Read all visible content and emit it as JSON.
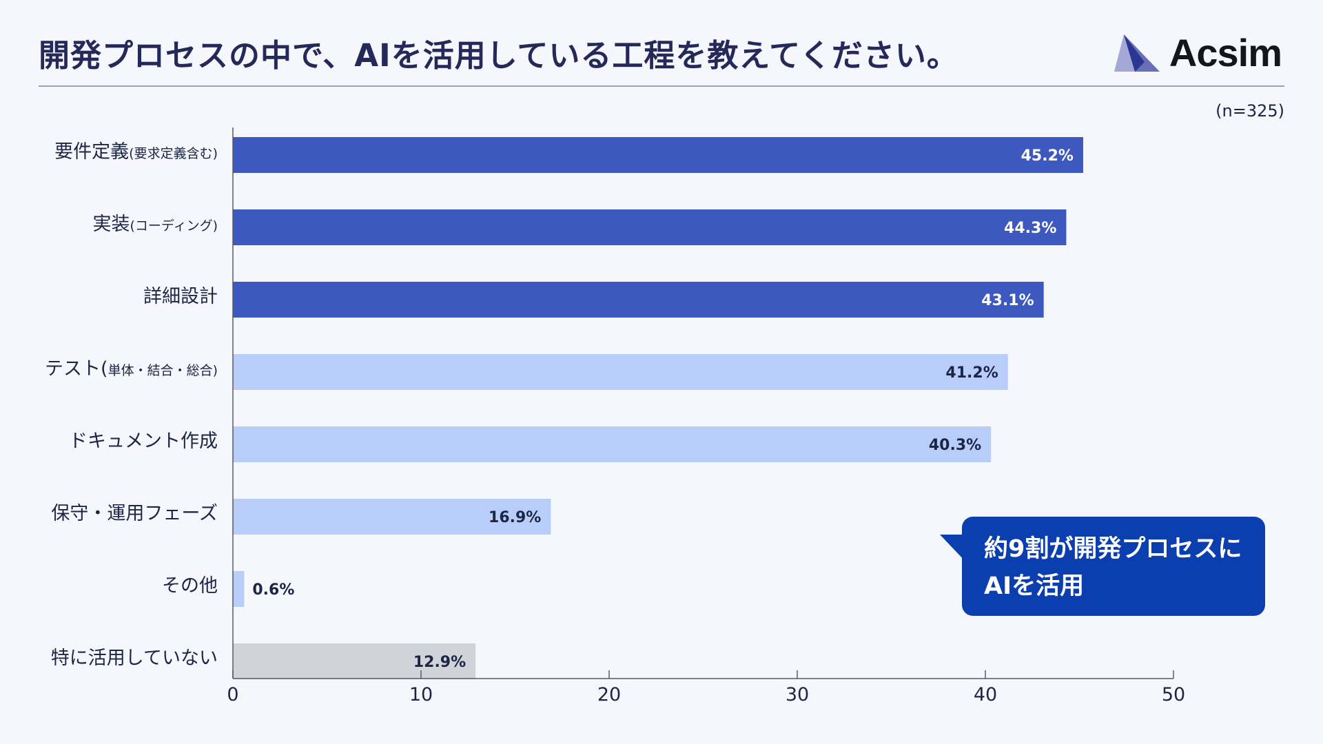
{
  "header": {
    "title": "開発プロセスの中で、AIを活用している工程を教えてください。",
    "logo_text": "Acsim",
    "sample_size": "(n=325)"
  },
  "callout": {
    "line1": "約9割が開発プロセスに",
    "line2": "AIを活用"
  },
  "colors": {
    "dark_bar": "#3d58bf",
    "light_bar": "#b9cdfb",
    "gray_bar": "#d0d3d8",
    "axis": "#555a66"
  },
  "chart_data": {
    "type": "bar",
    "orientation": "horizontal",
    "title": "開発プロセスの中で、AIを活用している工程を教えてください。",
    "xlabel": "",
    "ylabel": "",
    "xlim": [
      0,
      50
    ],
    "xticks": [
      0,
      10,
      20,
      30,
      40,
      50
    ],
    "categories": [
      {
        "main": "要件定義",
        "sub": "(要求定義含む)"
      },
      {
        "main": "実装",
        "sub": "(コーディング)"
      },
      {
        "main": "詳細設計",
        "sub": ""
      },
      {
        "main": "テスト(",
        "sub": "単体・結合・総合)"
      },
      {
        "main": "ドキュメント作成",
        "sub": ""
      },
      {
        "main": "保守・運用フェーズ",
        "sub": ""
      },
      {
        "main": "その他",
        "sub": ""
      },
      {
        "main": "特に活用していない",
        "sub": ""
      }
    ],
    "values": [
      45.2,
      44.3,
      43.1,
      41.2,
      40.3,
      16.9,
      0.6,
      12.9
    ],
    "labels": [
      "45.2%",
      "44.3%",
      "43.1%",
      "41.2%",
      "40.3%",
      "16.9%",
      "0.6%",
      "12.9%"
    ],
    "bar_styles": [
      "dark",
      "dark",
      "dark",
      "light",
      "light",
      "light",
      "light",
      "gray"
    ]
  }
}
